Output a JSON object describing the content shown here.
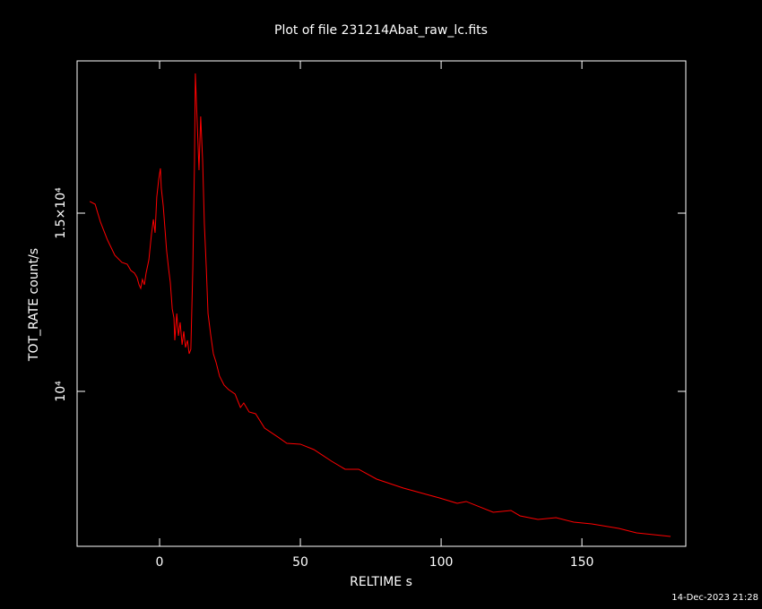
{
  "chart_data": {
    "type": "line",
    "title": "Plot of file 231214Abat_raw_lc.fits",
    "xlabel": "RELTIME  s",
    "ylabel": "TOT_RATE  count/s",
    "footer": "14-Dec-2023 21:28",
    "color": "#ff0000",
    "x": [
      -24.8,
      -22.9,
      -21,
      -18.5,
      -15.9,
      -13.4,
      -11.5,
      -10.2,
      -8.9,
      -8,
      -7.3,
      -6.7,
      -6.1,
      -5.4,
      -4.8,
      -3.8,
      -2.9,
      -2.2,
      -1.6,
      -1,
      -0.3,
      0.3,
      0.6,
      1.3,
      1.9,
      2.5,
      3.2,
      3.8,
      4.5,
      5.1,
      5.4,
      6.1,
      6.7,
      7.3,
      8,
      8.6,
      9.2,
      9.9,
      10.5,
      11.1,
      11.8,
      12.4,
      12.7,
      13.4,
      14,
      14.6,
      15.3,
      15.9,
      16.6,
      17.2,
      18.2,
      19.1,
      20.1,
      21.3,
      22.9,
      24.5,
      26.8,
      28.7,
      29.9,
      31.8,
      34.1,
      37.3,
      42,
      45.2,
      50,
      54.8,
      61.1,
      65.9,
      70.7,
      77.1,
      86.6,
      99.4,
      105.7,
      108.9,
      118.5,
      124.8,
      128,
      134.4,
      140.8,
      147.1,
      153.5,
      163.1,
      169.4,
      181.5
    ],
    "values": [
      15327,
      15251,
      14749,
      14246,
      13819,
      13618,
      13568,
      13392,
      13317,
      13191,
      12990,
      12889,
      13141,
      12990,
      13317,
      13693,
      14397,
      14824,
      14447,
      15452,
      15955,
      16256,
      15704,
      15201,
      14573,
      13945,
      13442,
      13065,
      12312,
      12060,
      11432,
      12186,
      11558,
      11935,
      11307,
      11683,
      11231,
      11432,
      11055,
      11181,
      13442,
      16457,
      18920,
      17462,
      16206,
      17714,
      16457,
      14698,
      13442,
      12186,
      11558,
      11055,
      10804,
      10427,
      10176,
      10050,
      9925,
      9548,
      9673,
      9422,
      9372,
      8970,
      8719,
      8543,
      8518,
      8367,
      8040,
      7814,
      7814,
      7538,
      7286,
      7010,
      6859,
      6910,
      6608,
      6658,
      6508,
      6407,
      6457,
      6332,
      6281,
      6156,
      6030,
      5930
    ],
    "xlim": [
      -29.3,
      186.9
    ],
    "ylim": [
      5653,
      19271
    ],
    "xticks": [
      0,
      50,
      100,
      150
    ],
    "yticks": [
      {
        "value": 10000,
        "label": "10⁴"
      },
      {
        "value": 15000,
        "label": "1.5×10⁴"
      }
    ]
  }
}
